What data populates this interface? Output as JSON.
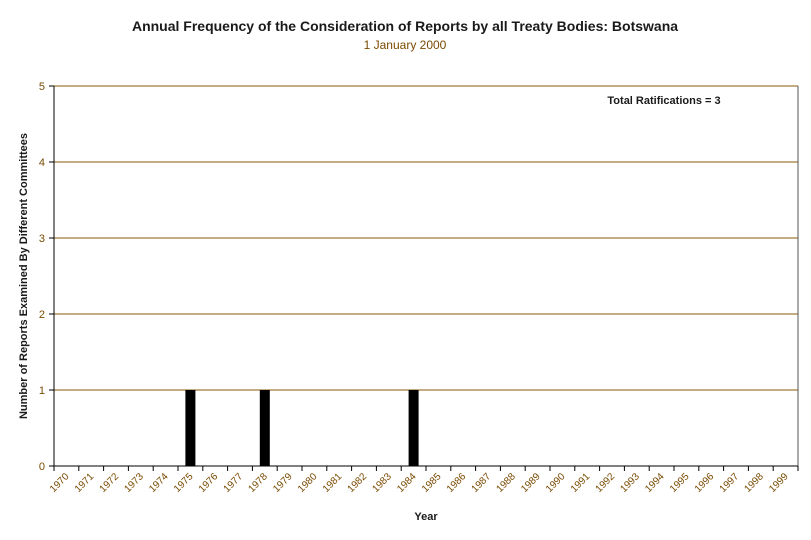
{
  "chart_data": {
    "type": "bar",
    "title": "Annual Frequency of the Consideration of Reports by all Treaty Bodies: Botswana",
    "subtitle": "1 January 2000",
    "xlabel": "Year",
    "ylabel": "Number of Reports Examined By Different Committees",
    "annotation": "Total Ratifications = 3",
    "ylim": [
      0,
      5
    ],
    "yticks": [
      "0",
      "1",
      "2",
      "3",
      "4",
      "5"
    ],
    "grid": true,
    "categories": [
      "1970",
      "1971",
      "1972",
      "1973",
      "1974",
      "1975",
      "1976",
      "1977",
      "1978",
      "1979",
      "1980",
      "1981",
      "1982",
      "1983",
      "1984",
      "1985",
      "1986",
      "1987",
      "1988",
      "1989",
      "1990",
      "1991",
      "1992",
      "1993",
      "1994",
      "1995",
      "1996",
      "1997",
      "1998",
      "1999"
    ],
    "values": [
      0,
      0,
      0,
      0,
      0,
      1,
      0,
      0,
      1,
      0,
      0,
      0,
      0,
      0,
      1,
      0,
      0,
      0,
      0,
      0,
      0,
      0,
      0,
      0,
      0,
      0,
      0,
      0,
      0,
      0
    ],
    "colors": {
      "bar": "#000000",
      "grid": "#8b5a00",
      "axis": "#000000",
      "tick_text": "#7a4a00"
    }
  }
}
